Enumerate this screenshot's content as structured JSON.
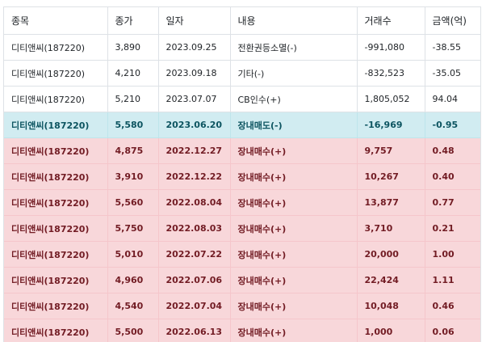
{
  "headers": [
    "종목",
    "종가",
    "일자",
    "내용",
    "거래수",
    "금액(억)"
  ],
  "rows": [
    {
      "type": "normal",
      "cells": [
        "디티앤씨(187220)",
        "3,890",
        "2023.09.25",
        "전환권등소멸(-)",
        "-991,080",
        "-38.55"
      ]
    },
    {
      "type": "normal",
      "cells": [
        "디티앤씨(187220)",
        "4,210",
        "2023.09.18",
        "기타(-)",
        "-832,523",
        "-35.05"
      ]
    },
    {
      "type": "normal",
      "cells": [
        "디티앤씨(187220)",
        "5,210",
        "2023.07.07",
        "CB인수(+)",
        "1,805,052",
        "94.04"
      ]
    },
    {
      "type": "info",
      "cells": [
        "디티앤씨(187220)",
        "5,580",
        "2023.06.20",
        "장내매도(-)",
        "-16,969",
        "-0.95"
      ]
    },
    {
      "type": "danger",
      "cells": [
        "디티앤씨(187220)",
        "4,875",
        "2022.12.27",
        "장내매수(+)",
        "9,757",
        "0.48"
      ]
    },
    {
      "type": "danger",
      "cells": [
        "디티앤씨(187220)",
        "3,910",
        "2022.12.22",
        "장내매수(+)",
        "10,267",
        "0.40"
      ]
    },
    {
      "type": "danger",
      "cells": [
        "디티앤씨(187220)",
        "5,560",
        "2022.08.04",
        "장내매수(+)",
        "13,877",
        "0.77"
      ]
    },
    {
      "type": "danger",
      "cells": [
        "디티앤씨(187220)",
        "5,750",
        "2022.08.03",
        "장내매수(+)",
        "3,710",
        "0.21"
      ]
    },
    {
      "type": "danger",
      "cells": [
        "디티앤씨(187220)",
        "5,010",
        "2022.07.22",
        "장내매수(+)",
        "20,000",
        "1.00"
      ]
    },
    {
      "type": "danger",
      "cells": [
        "디티앤씨(187220)",
        "4,960",
        "2022.07.06",
        "장내매수(+)",
        "22,424",
        "1.11"
      ]
    },
    {
      "type": "danger",
      "cells": [
        "디티앤씨(187220)",
        "4,540",
        "2022.07.04",
        "장내매수(+)",
        "10,048",
        "0.46"
      ]
    },
    {
      "type": "danger",
      "cells": [
        "디티앤씨(187220)",
        "5,500",
        "2022.06.13",
        "장내매수(+)",
        "1,000",
        "0.06"
      ]
    }
  ]
}
